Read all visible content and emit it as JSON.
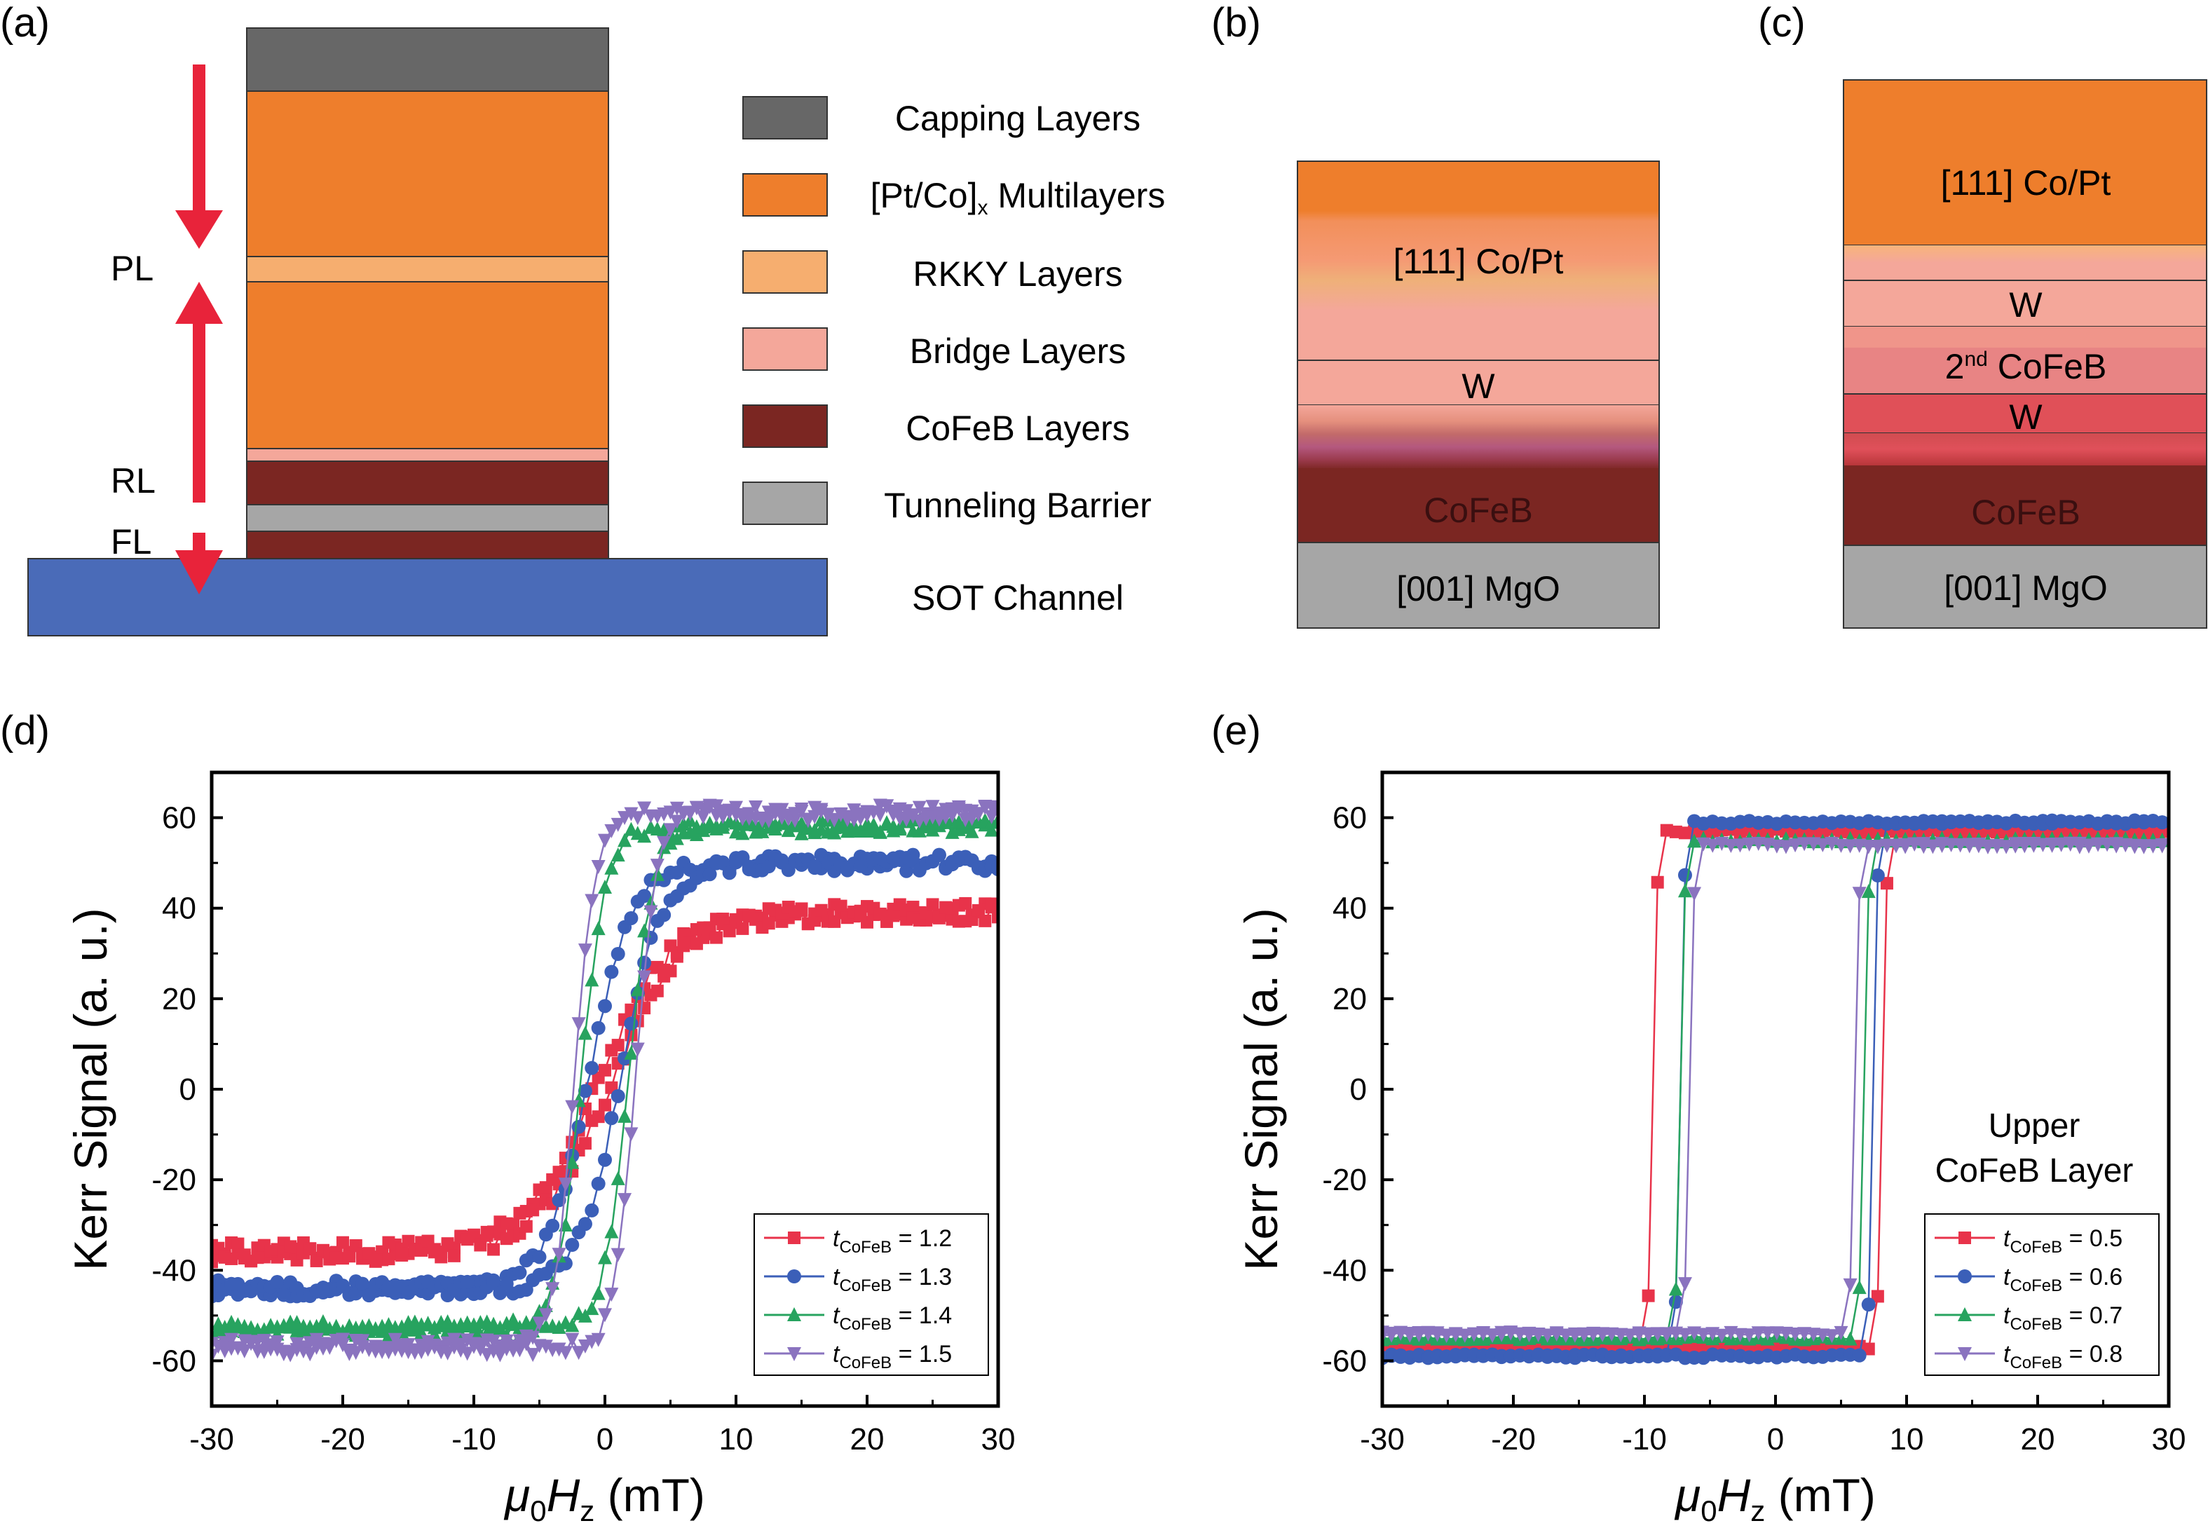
{
  "panels": {
    "a": {
      "letter": "(a)",
      "side_labels": {
        "pl": "PL",
        "rl": "RL",
        "fl": "FL"
      },
      "legend": [
        {
          "label": "Capping Layers",
          "color": "#676767"
        },
        {
          "label_main": "[Pt/Co]",
          "label_sub": "x",
          "label_tail": " Multilayers",
          "color": "#ee7e2c"
        },
        {
          "label": "RKKY Layers",
          "color": "#f6ae6f"
        },
        {
          "label": "Bridge Layers",
          "color": "#f4a79a"
        },
        {
          "label": "CoFeB Layers",
          "color": "#7b2622"
        },
        {
          "label": "Tunneling Barrier",
          "color": "#a6a6a6"
        },
        {
          "label": "SOT Channel",
          "color": "#4a6bb8"
        }
      ]
    },
    "b": {
      "letter": "(b)",
      "labels": {
        "copt": "[111] Co/Pt",
        "w": "W",
        "cofeb": "CoFeB",
        "mgo": "[001] MgO"
      }
    },
    "c": {
      "letter": "(c)",
      "labels": {
        "copt": "[111] Co/Pt",
        "w1": "W",
        "cofeb2_main": "2",
        "cofeb2_sup": "nd",
        "cofeb2_tail": " CoFeB",
        "w2": "W",
        "cofeb": "CoFeB",
        "mgo": "[001] MgO"
      }
    },
    "d": {
      "letter": "(d)"
    },
    "e": {
      "letter": "(e)",
      "annotation": [
        "Upper",
        "CoFeB Layer"
      ]
    }
  },
  "chart_data": [
    {
      "id": "d",
      "type": "line",
      "xlabel_main": "μ",
      "xlabel_sub0": "0",
      "xlabel_mid": "H",
      "xlabel_sub1": "z",
      "xlabel_tail": " (mT)",
      "ylabel": "Kerr Signal (a. u.)",
      "xlim": [
        -30,
        30
      ],
      "ylim": [
        -70,
        70
      ],
      "xticks": [
        "-30",
        "-20",
        "-10",
        "0",
        "10",
        "20",
        "30"
      ],
      "yticks": [
        "-60",
        "-40",
        "-20",
        "0",
        "20",
        "40",
        "60"
      ],
      "legend_position": "bottom-right",
      "series": [
        {
          "name_var": "t",
          "name_sub": "CoFeB",
          "name_val": " = 1.2",
          "color": "#e8334a",
          "marker": "square",
          "sat_low": -36,
          "sat_high": 39,
          "hc": 0.5,
          "width": 5.5,
          "noise": 2.2
        },
        {
          "name_var": "t",
          "name_sub": "CoFeB",
          "name_val": " = 1.3",
          "color": "#3b5fb8",
          "marker": "circle",
          "sat_low": -44,
          "sat_high": 50,
          "hc": 1.2,
          "width": 3.2,
          "noise": 1.8
        },
        {
          "name_var": "t",
          "name_sub": "CoFeB",
          "name_val": " = 1.4",
          "color": "#27a35f",
          "marker": "triangle-up",
          "sat_low": -53,
          "sat_high": 58,
          "hc": 1.8,
          "width": 1.9,
          "noise": 1.6
        },
        {
          "name_var": "t",
          "name_sub": "CoFeB",
          "name_val": " = 1.5",
          "color": "#8a73bf",
          "marker": "triangle-down",
          "sat_low": -57,
          "sat_high": 61,
          "hc": 2.3,
          "width": 1.6,
          "noise": 1.8
        }
      ]
    },
    {
      "id": "e",
      "type": "line",
      "xlabel_main": "μ",
      "xlabel_sub0": "0",
      "xlabel_mid": "H",
      "xlabel_sub1": "z",
      "xlabel_tail": " (mT)",
      "ylabel": "Kerr Signal (a. u.)",
      "xlim": [
        -30,
        30
      ],
      "ylim": [
        -70,
        70
      ],
      "xticks": [
        "-30",
        "-20",
        "-10",
        "0",
        "10",
        "20",
        "30"
      ],
      "yticks": [
        "-60",
        "-40",
        "-20",
        "0",
        "20",
        "40",
        "60"
      ],
      "legend_position": "bottom-right",
      "series": [
        {
          "name_var": "t",
          "name_sub": "CoFeB",
          "name_val": " = 0.5",
          "color": "#e8334a",
          "marker": "square",
          "sat_low": -57,
          "sat_high": 57,
          "hc_neg": -9.6,
          "hc_pos": 8.0
        },
        {
          "name_var": "t",
          "name_sub": "CoFeB",
          "name_val": " = 0.6",
          "color": "#3b5fb8",
          "marker": "circle",
          "sat_low": -59,
          "sat_high": 59,
          "hc_neg": -7.6,
          "hc_pos": 7.3
        },
        {
          "name_var": "t",
          "name_sub": "CoFeB",
          "name_val": " = 0.7",
          "color": "#27a35f",
          "marker": "triangle-up",
          "sat_low": -55,
          "sat_high": 55,
          "hc_neg": -7.0,
          "hc_pos": 6.6
        },
        {
          "name_var": "t",
          "name_sub": "CoFeB",
          "name_val": " = 0.8",
          "color": "#8a73bf",
          "marker": "triangle-down",
          "sat_low": -54,
          "sat_high": 54,
          "hc_neg": -6.6,
          "hc_pos": 6.0
        }
      ]
    }
  ]
}
